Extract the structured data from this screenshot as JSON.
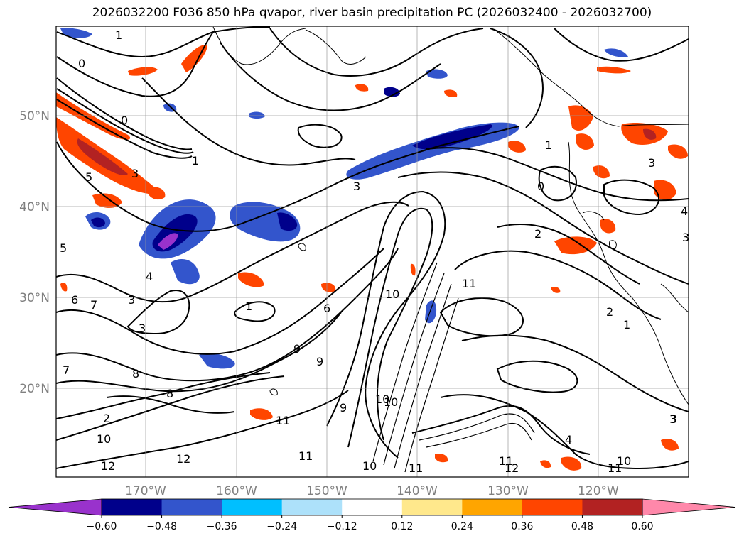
{
  "title": "2026032200 F036 850 hPa qvapor, river basin precipitation PC (2026032400 - 2026032700)",
  "lat_labels": [
    "50°N",
    "40°N",
    "30°N",
    "20°N"
  ],
  "lon_labels": [
    "170°W",
    "160°W",
    "150°W",
    "140°W",
    "130°W",
    "120°W"
  ],
  "colorbar": {
    "ticks": [
      "−0.60",
      "−0.48",
      "−0.36",
      "−0.24",
      "−0.12",
      "0.12",
      "0.24",
      "0.36",
      "0.48",
      "0.60"
    ],
    "colors": [
      "#9932CC",
      "#00008B",
      "#3355CC",
      "#00BFFF",
      "#ADE1FA",
      "#FFFFFF",
      "#FFE88C",
      "#FFA500",
      "#FF4500",
      "#B22222",
      "#FF88AA"
    ]
  },
  "contour_labels": [
    "1",
    "0",
    "0",
    "1",
    "5",
    "3",
    "4",
    "3",
    "5",
    "6",
    "7",
    "3",
    "8",
    "7",
    "2",
    "1",
    "6",
    "9",
    "9",
    "8",
    "10",
    "11",
    "12",
    "12",
    "10",
    "11",
    "11",
    "10",
    "11",
    "9",
    "3",
    "3",
    "10",
    "2",
    "2",
    "1",
    "3",
    "4",
    "3",
    "0",
    "1",
    "10",
    "11",
    "12",
    "11",
    "10",
    "3",
    "4"
  ]
}
